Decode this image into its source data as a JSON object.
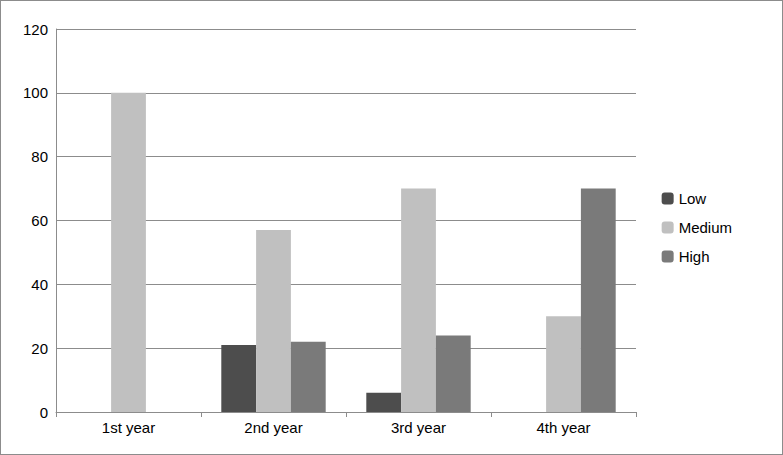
{
  "chart_data": {
    "type": "bar",
    "categories": [
      "1st year",
      "2nd year",
      "3rd year",
      "4th year"
    ],
    "series": [
      {
        "name": "Low",
        "color": "#4d4d4d",
        "values": [
          0,
          21,
          6,
          0
        ]
      },
      {
        "name": "Medium",
        "color": "#c0c0c0",
        "values": [
          100,
          57,
          70,
          30
        ]
      },
      {
        "name": "High",
        "color": "#7a7a7a",
        "values": [
          0,
          22,
          24,
          70
        ]
      }
    ],
    "ylim": [
      0,
      120
    ],
    "yticks": [
      0,
      20,
      40,
      60,
      80,
      100,
      120
    ],
    "grid": true,
    "legend": "right"
  }
}
